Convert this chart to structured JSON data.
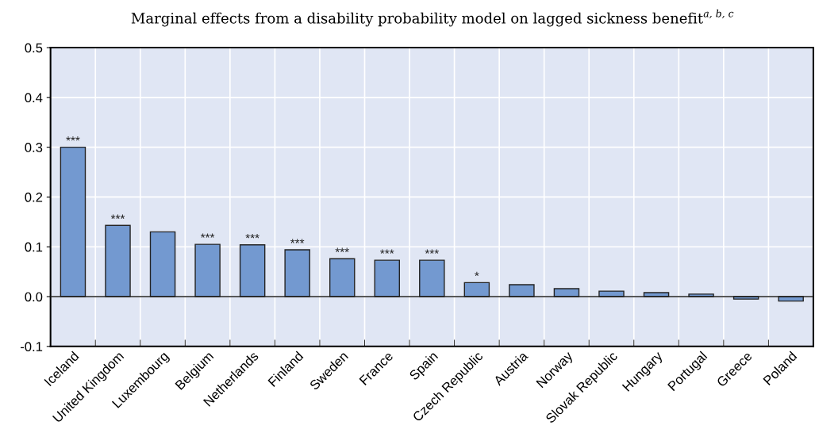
{
  "chart_data": {
    "type": "bar",
    "title": "Marginal effects from a disability probability model on lagged sickness benefit$^{a, b, c}$",
    "categories": [
      "Iceland",
      "United Kingdom",
      "Luxembourg",
      "Belgium",
      "Netherlands",
      "Finland",
      "Sweden",
      "France",
      "Spain",
      "Czech Republic",
      "Austria",
      "Norway",
      "Slovak Republic",
      "Hungary",
      "Portugal",
      "Greece",
      "Poland"
    ],
    "values": [
      0.3,
      0.143,
      0.13,
      0.105,
      0.104,
      0.094,
      0.076,
      0.073,
      0.073,
      0.028,
      0.024,
      0.016,
      0.011,
      0.008,
      0.005,
      -0.005,
      -0.009
    ],
    "value_labels": [
      "***",
      "***",
      null,
      "***",
      "***",
      "***",
      "***",
      "***",
      "***",
      "*",
      null,
      null,
      null,
      null,
      null,
      null,
      null
    ],
    "color": "#7399d0",
    "ylim": [
      -0.1,
      0.5
    ],
    "yticks": [
      {
        "value": -0.1,
        "label": "-0.1"
      },
      {
        "value": 0,
        "label": "0.0"
      },
      {
        "value": 0.1,
        "label": "0.1"
      },
      {
        "value": 0.2,
        "label": "0.2"
      },
      {
        "value": 0.3,
        "label": "0.3"
      },
      {
        "value": 0.4,
        "label": "0.4"
      },
      {
        "value": 0.5,
        "label": "0.5"
      }
    ],
    "grid": true
  }
}
